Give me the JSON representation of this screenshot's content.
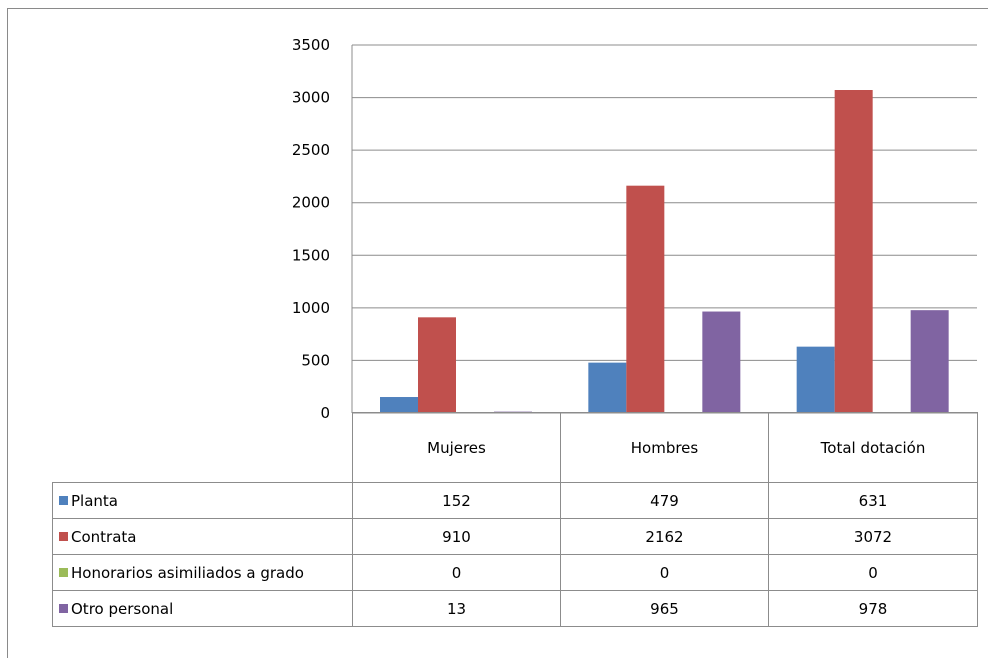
{
  "chart_data": {
    "type": "bar",
    "categories": [
      "Mujeres",
      "Hombres",
      "Total dotación"
    ],
    "series": [
      {
        "name": "Planta",
        "values": [
          152,
          479,
          631
        ],
        "color": "#4f81bd"
      },
      {
        "name": "Contrata",
        "values": [
          910,
          2162,
          3072
        ],
        "color": "#c0504d"
      },
      {
        "name": "Honorarios asimiliados a grado",
        "values": [
          0,
          0,
          0
        ],
        "color": "#9bbb59"
      },
      {
        "name": "Otro personal",
        "values": [
          13,
          965,
          978
        ],
        "color": "#8064a2"
      }
    ],
    "ylim": [
      0,
      3500
    ],
    "yticks": [
      0,
      500,
      1000,
      1500,
      2000,
      2500,
      3000,
      3500
    ],
    "grid": true,
    "legend": "data table below chart",
    "title": "",
    "xlabel": "",
    "ylabel": ""
  }
}
